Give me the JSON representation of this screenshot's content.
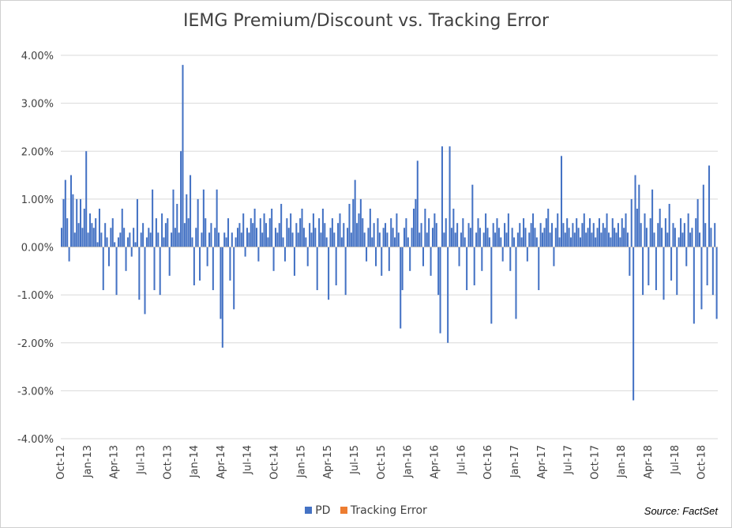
{
  "chart_data": {
    "type": "bar",
    "title": "IEMG Premium/Discount vs. Tracking Error",
    "source": "Source: FactSet",
    "ylim": [
      -0.04,
      0.04
    ],
    "y_ticks": [
      "4.00%",
      "3.00%",
      "2.00%",
      "1.00%",
      "0.00%",
      "-1.00%",
      "-2.00%",
      "-3.00%",
      "-4.00%"
    ],
    "x_ticks": [
      "Oct-12",
      "Jan-13",
      "Apr-13",
      "Jul-13",
      "Oct-13",
      "Jan-14",
      "Apr-14",
      "Jul-14",
      "Oct-14",
      "Jan-15",
      "Apr-15",
      "Jul-15",
      "Oct-15",
      "Jan-16",
      "Apr-16",
      "Jul-16",
      "Oct-16",
      "Jan-17",
      "Apr-17",
      "Jul-17",
      "Oct-17",
      "Jan-18",
      "Apr-18",
      "Jul-18",
      "Oct-18"
    ],
    "x_range": [
      "2012-10",
      "2019-01"
    ],
    "grid": true,
    "legend_position": "bottom",
    "series": [
      {
        "name": "PD",
        "color": "#4472C4",
        "values": [
          0.4,
          1.0,
          1.4,
          0.6,
          -0.3,
          1.5,
          1.1,
          0.3,
          1.0,
          0.5,
          1.0,
          0.4,
          0.8,
          2.0,
          0.3,
          0.7,
          0.5,
          0.4,
          0.6,
          0.1,
          0.8,
          0.3,
          -0.9,
          0.5,
          0.2,
          -0.4,
          0.4,
          0.6,
          0.1,
          -1.0,
          0.2,
          0.3,
          0.8,
          0.4,
          -0.5,
          0.2,
          0.3,
          -0.2,
          0.4,
          0.1,
          1.0,
          -1.1,
          0.3,
          0.5,
          -1.4,
          0.2,
          0.4,
          0.3,
          1.2,
          -0.9,
          0.6,
          0.3,
          -1.0,
          0.7,
          0.2,
          0.5,
          0.6,
          -0.6,
          0.3,
          1.2,
          0.4,
          0.9,
          0.3,
          2.0,
          3.8,
          0.5,
          1.1,
          0.6,
          1.5,
          0.2,
          -0.8,
          0.4,
          1.0,
          -0.7,
          0.3,
          1.2,
          0.6,
          -0.4,
          0.3,
          0.5,
          -0.9,
          0.4,
          1.2,
          0.3,
          -1.5,
          -2.1,
          0.3,
          0.2,
          0.6,
          -0.7,
          0.3,
          -1.3,
          0.2,
          0.4,
          0.5,
          0.3,
          0.7,
          -0.2,
          0.4,
          0.3,
          0.6,
          0.5,
          0.8,
          0.4,
          -0.3,
          0.6,
          0.3,
          0.7,
          0.5,
          0.2,
          0.6,
          0.8,
          -0.5,
          0.4,
          0.3,
          0.5,
          0.9,
          0.2,
          -0.3,
          0.6,
          0.4,
          0.7,
          0.3,
          -0.6,
          0.5,
          0.3,
          0.6,
          0.8,
          0.4,
          0.2,
          -0.4,
          0.5,
          0.3,
          0.7,
          0.4,
          -0.9,
          0.6,
          0.3,
          0.8,
          0.5,
          0.2,
          -1.1,
          0.4,
          0.6,
          0.3,
          -0.8,
          0.5,
          0.7,
          0.2,
          0.5,
          -1.0,
          0.4,
          0.9,
          0.3,
          1.0,
          1.4,
          0.5,
          0.7,
          1.0,
          0.6,
          0.3,
          -0.3,
          0.4,
          0.8,
          0.2,
          0.5,
          -0.4,
          0.6,
          0.3,
          -0.6,
          0.4,
          0.5,
          0.3,
          -0.5,
          0.6,
          0.4,
          0.2,
          0.7,
          0.3,
          -1.7,
          -0.9,
          0.4,
          0.6,
          0.2,
          -0.5,
          0.4,
          0.8,
          1.0,
          1.8,
          0.3,
          0.5,
          -0.4,
          0.8,
          0.3,
          0.6,
          -0.6,
          0.4,
          0.7,
          0.5,
          -1.0,
          -1.8,
          2.1,
          0.3,
          0.6,
          -2.0,
          2.1,
          0.4,
          0.8,
          0.3,
          0.5,
          -0.4,
          0.3,
          0.6,
          0.2,
          -0.9,
          0.5,
          0.4,
          1.3,
          -0.8,
          0.3,
          0.6,
          0.4,
          -0.5,
          0.3,
          0.7,
          0.4,
          0.2,
          -1.6,
          0.5,
          0.3,
          0.6,
          0.4,
          0.2,
          -0.3,
          0.5,
          0.3,
          0.7,
          -0.5,
          0.4,
          0.2,
          -1.5,
          0.3,
          0.5,
          0.2,
          0.6,
          0.4,
          -0.3,
          0.3,
          0.5,
          0.7,
          0.4,
          0.2,
          -0.9,
          0.5,
          0.3,
          0.4,
          0.6,
          0.8,
          0.3,
          0.5,
          -0.4,
          0.4,
          0.7,
          0.2,
          1.9,
          0.5,
          0.3,
          0.6,
          0.4,
          0.2,
          0.5,
          0.3,
          0.6,
          0.4,
          0.2,
          0.5,
          0.7,
          0.3,
          0.4,
          0.6,
          0.3,
          0.5,
          0.2,
          0.4,
          0.6,
          0.3,
          0.5,
          0.4,
          0.7,
          0.3,
          0.2,
          0.6,
          0.4,
          0.3,
          0.5,
          0.2,
          0.6,
          0.4,
          0.7,
          0.3,
          -0.6,
          1.0,
          -3.2,
          1.5,
          0.8,
          1.3,
          0.5,
          -1.0,
          0.7,
          0.4,
          -0.8,
          0.6,
          1.2,
          0.3,
          -0.9,
          0.5,
          0.8,
          0.4,
          -1.1,
          0.6,
          0.3,
          0.9,
          -0.7,
          0.5,
          0.4,
          -1.0,
          0.2,
          0.6,
          0.3,
          0.5,
          -0.4,
          0.7,
          0.3,
          0.4,
          -1.6,
          0.6,
          1.0,
          0.3,
          -1.3,
          1.3,
          0.5,
          -0.8,
          1.7,
          0.4,
          -1.0,
          0.5,
          -1.5
        ]
      },
      {
        "name": "Tracking Error",
        "color": "#ED7D31",
        "values": []
      }
    ]
  }
}
